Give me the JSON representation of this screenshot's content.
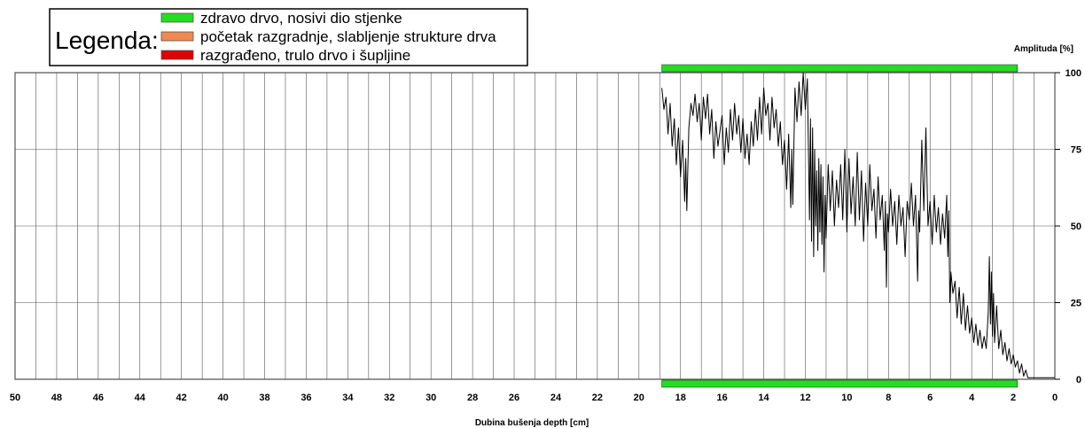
{
  "chart_data": {
    "type": "line",
    "xlabel": "Dubina bušenja depth [cm]",
    "ylabel": "Amplituda [%]",
    "x_reversed": true,
    "xlim": [
      0,
      50
    ],
    "ylim": [
      0,
      100
    ],
    "x_ticks": [
      50,
      48,
      46,
      44,
      42,
      40,
      38,
      36,
      34,
      32,
      30,
      28,
      26,
      24,
      22,
      20,
      18,
      16,
      14,
      12,
      10,
      8,
      6,
      4,
      2,
      0
    ],
    "y_ticks": [
      0,
      25,
      50,
      75,
      100
    ],
    "grid": true,
    "legend": {
      "title": "Legenda:",
      "placement": "top-left",
      "entries": [
        {
          "label": "zdravo drvo, nosivi dio stjenke",
          "color": "#22dd22"
        },
        {
          "label": "početak razgradnje, slabljenje strukture drva",
          "color": "#f08850"
        },
        {
          "label": "razgrađeno, trulo drvo i šupljine",
          "color": "#e00000"
        }
      ]
    },
    "condition_bands": [
      {
        "class": "zdravo drvo, nosivi dio stjenke",
        "color": "#22dd22",
        "x_start": 18.9,
        "x_end": 1.8
      }
    ],
    "series": [
      {
        "color": "#000000",
        "points": [
          [
            18.9,
            95
          ],
          [
            18.8,
            88
          ],
          [
            18.7,
            92
          ],
          [
            18.6,
            80
          ],
          [
            18.5,
            90
          ],
          [
            18.4,
            76
          ],
          [
            18.3,
            85
          ],
          [
            18.2,
            70
          ],
          [
            18.1,
            82
          ],
          [
            18.0,
            66
          ],
          [
            17.9,
            78
          ],
          [
            17.8,
            58
          ],
          [
            17.75,
            72
          ],
          [
            17.7,
            55
          ],
          [
            17.6,
            82
          ],
          [
            17.5,
            90
          ],
          [
            17.4,
            86
          ],
          [
            17.3,
            93
          ],
          [
            17.2,
            84
          ],
          [
            17.1,
            90
          ],
          [
            17.0,
            78
          ],
          [
            16.9,
            92
          ],
          [
            16.8,
            85
          ],
          [
            16.7,
            93
          ],
          [
            16.6,
            80
          ],
          [
            16.5,
            88
          ],
          [
            16.4,
            72
          ],
          [
            16.3,
            84
          ],
          [
            16.2,
            76
          ],
          [
            16.0,
            86
          ],
          [
            15.9,
            70
          ],
          [
            15.8,
            82
          ],
          [
            15.7,
            74
          ],
          [
            15.6,
            88
          ],
          [
            15.5,
            78
          ],
          [
            15.4,
            90
          ],
          [
            15.3,
            80
          ],
          [
            15.2,
            86
          ],
          [
            15.1,
            74
          ],
          [
            15.0,
            85
          ],
          [
            14.9,
            72
          ],
          [
            14.8,
            80
          ],
          [
            14.7,
            70
          ],
          [
            14.6,
            84
          ],
          [
            14.5,
            76
          ],
          [
            14.4,
            88
          ],
          [
            14.3,
            78
          ],
          [
            14.2,
            92
          ],
          [
            14.1,
            80
          ],
          [
            14.0,
            95
          ],
          [
            13.9,
            86
          ],
          [
            13.8,
            90
          ],
          [
            13.7,
            78
          ],
          [
            13.6,
            92
          ],
          [
            13.5,
            82
          ],
          [
            13.4,
            88
          ],
          [
            13.3,
            76
          ],
          [
            13.2,
            84
          ],
          [
            13.1,
            70
          ],
          [
            13.0,
            78
          ],
          [
            12.9,
            62
          ],
          [
            12.8,
            80
          ],
          [
            12.7,
            56
          ],
          [
            12.65,
            75
          ],
          [
            12.6,
            57
          ],
          [
            12.5,
            95
          ],
          [
            12.4,
            84
          ],
          [
            12.3,
            97
          ],
          [
            12.2,
            86
          ],
          [
            12.1,
            100
          ],
          [
            12.0,
            88
          ],
          [
            11.9,
            98
          ],
          [
            11.8,
            52
          ],
          [
            11.75,
            85
          ],
          [
            11.7,
            45
          ],
          [
            11.65,
            82
          ],
          [
            11.6,
            40
          ],
          [
            11.55,
            75
          ],
          [
            11.5,
            50
          ],
          [
            11.45,
            68
          ],
          [
            11.4,
            42
          ],
          [
            11.35,
            72
          ],
          [
            11.3,
            48
          ],
          [
            11.25,
            70
          ],
          [
            11.2,
            44
          ],
          [
            11.15,
            66
          ],
          [
            11.1,
            35
          ],
          [
            11.05,
            60
          ],
          [
            11.0,
            46
          ],
          [
            10.9,
            70
          ],
          [
            10.8,
            55
          ],
          [
            10.7,
            68
          ],
          [
            10.6,
            50
          ],
          [
            10.5,
            65
          ],
          [
            10.4,
            56
          ],
          [
            10.3,
            70
          ],
          [
            10.2,
            52
          ],
          [
            10.1,
            75
          ],
          [
            10.0,
            48
          ],
          [
            9.9,
            72
          ],
          [
            9.8,
            54
          ],
          [
            9.7,
            66
          ],
          [
            9.6,
            50
          ],
          [
            9.5,
            74
          ],
          [
            9.4,
            52
          ],
          [
            9.3,
            68
          ],
          [
            9.2,
            45
          ],
          [
            9.1,
            64
          ],
          [
            9.0,
            50
          ],
          [
            8.9,
            70
          ],
          [
            8.8,
            55
          ],
          [
            8.7,
            62
          ],
          [
            8.6,
            46
          ],
          [
            8.5,
            66
          ],
          [
            8.4,
            52
          ],
          [
            8.3,
            60
          ],
          [
            8.2,
            42
          ],
          [
            8.15,
            58
          ],
          [
            8.1,
            30
          ],
          [
            8.05,
            54
          ],
          [
            8.0,
            48
          ],
          [
            7.9,
            62
          ],
          [
            7.8,
            50
          ],
          [
            7.7,
            58
          ],
          [
            7.6,
            44
          ],
          [
            7.5,
            60
          ],
          [
            7.4,
            50
          ],
          [
            7.3,
            56
          ],
          [
            7.2,
            40
          ],
          [
            7.1,
            58
          ],
          [
            7.0,
            52
          ],
          [
            6.9,
            64
          ],
          [
            6.8,
            50
          ],
          [
            6.7,
            60
          ],
          [
            6.6,
            32
          ],
          [
            6.55,
            55
          ],
          [
            6.5,
            48
          ],
          [
            6.4,
            78
          ],
          [
            6.3,
            55
          ],
          [
            6.2,
            82
          ],
          [
            6.1,
            50
          ],
          [
            6.0,
            58
          ],
          [
            5.9,
            44
          ],
          [
            5.8,
            60
          ],
          [
            5.7,
            48
          ],
          [
            5.6,
            56
          ],
          [
            5.5,
            44
          ],
          [
            5.4,
            54
          ],
          [
            5.3,
            46
          ],
          [
            5.2,
            60
          ],
          [
            5.15,
            40
          ],
          [
            5.1,
            55
          ],
          [
            5.05,
            25
          ],
          [
            5.0,
            35
          ],
          [
            4.9,
            28
          ],
          [
            4.8,
            32
          ],
          [
            4.7,
            20
          ],
          [
            4.6,
            30
          ],
          [
            4.5,
            18
          ],
          [
            4.4,
            28
          ],
          [
            4.3,
            16
          ],
          [
            4.2,
            24
          ],
          [
            4.1,
            15
          ],
          [
            4.0,
            20
          ],
          [
            3.9,
            12
          ],
          [
            3.8,
            18
          ],
          [
            3.7,
            11
          ],
          [
            3.6,
            16
          ],
          [
            3.5,
            10
          ],
          [
            3.4,
            14
          ],
          [
            3.3,
            10
          ],
          [
            3.2,
            22
          ],
          [
            3.15,
            40
          ],
          [
            3.1,
            18
          ],
          [
            3.05,
            35
          ],
          [
            3.0,
            14
          ],
          [
            2.95,
            28
          ],
          [
            2.9,
            12
          ],
          [
            2.8,
            24
          ],
          [
            2.7,
            10
          ],
          [
            2.6,
            16
          ],
          [
            2.5,
            8
          ],
          [
            2.4,
            12
          ],
          [
            2.3,
            6
          ],
          [
            2.2,
            10
          ],
          [
            2.1,
            5
          ],
          [
            2.0,
            8
          ],
          [
            1.9,
            4
          ],
          [
            1.8,
            6
          ],
          [
            1.7,
            2
          ],
          [
            1.6,
            5
          ],
          [
            1.5,
            1
          ],
          [
            1.4,
            3
          ],
          [
            1.3,
            0.5
          ],
          [
            1.2,
            0.5
          ],
          [
            1.0,
            0.5
          ],
          [
            0.5,
            0.5
          ],
          [
            0.0,
            0.5
          ]
        ]
      }
    ]
  }
}
